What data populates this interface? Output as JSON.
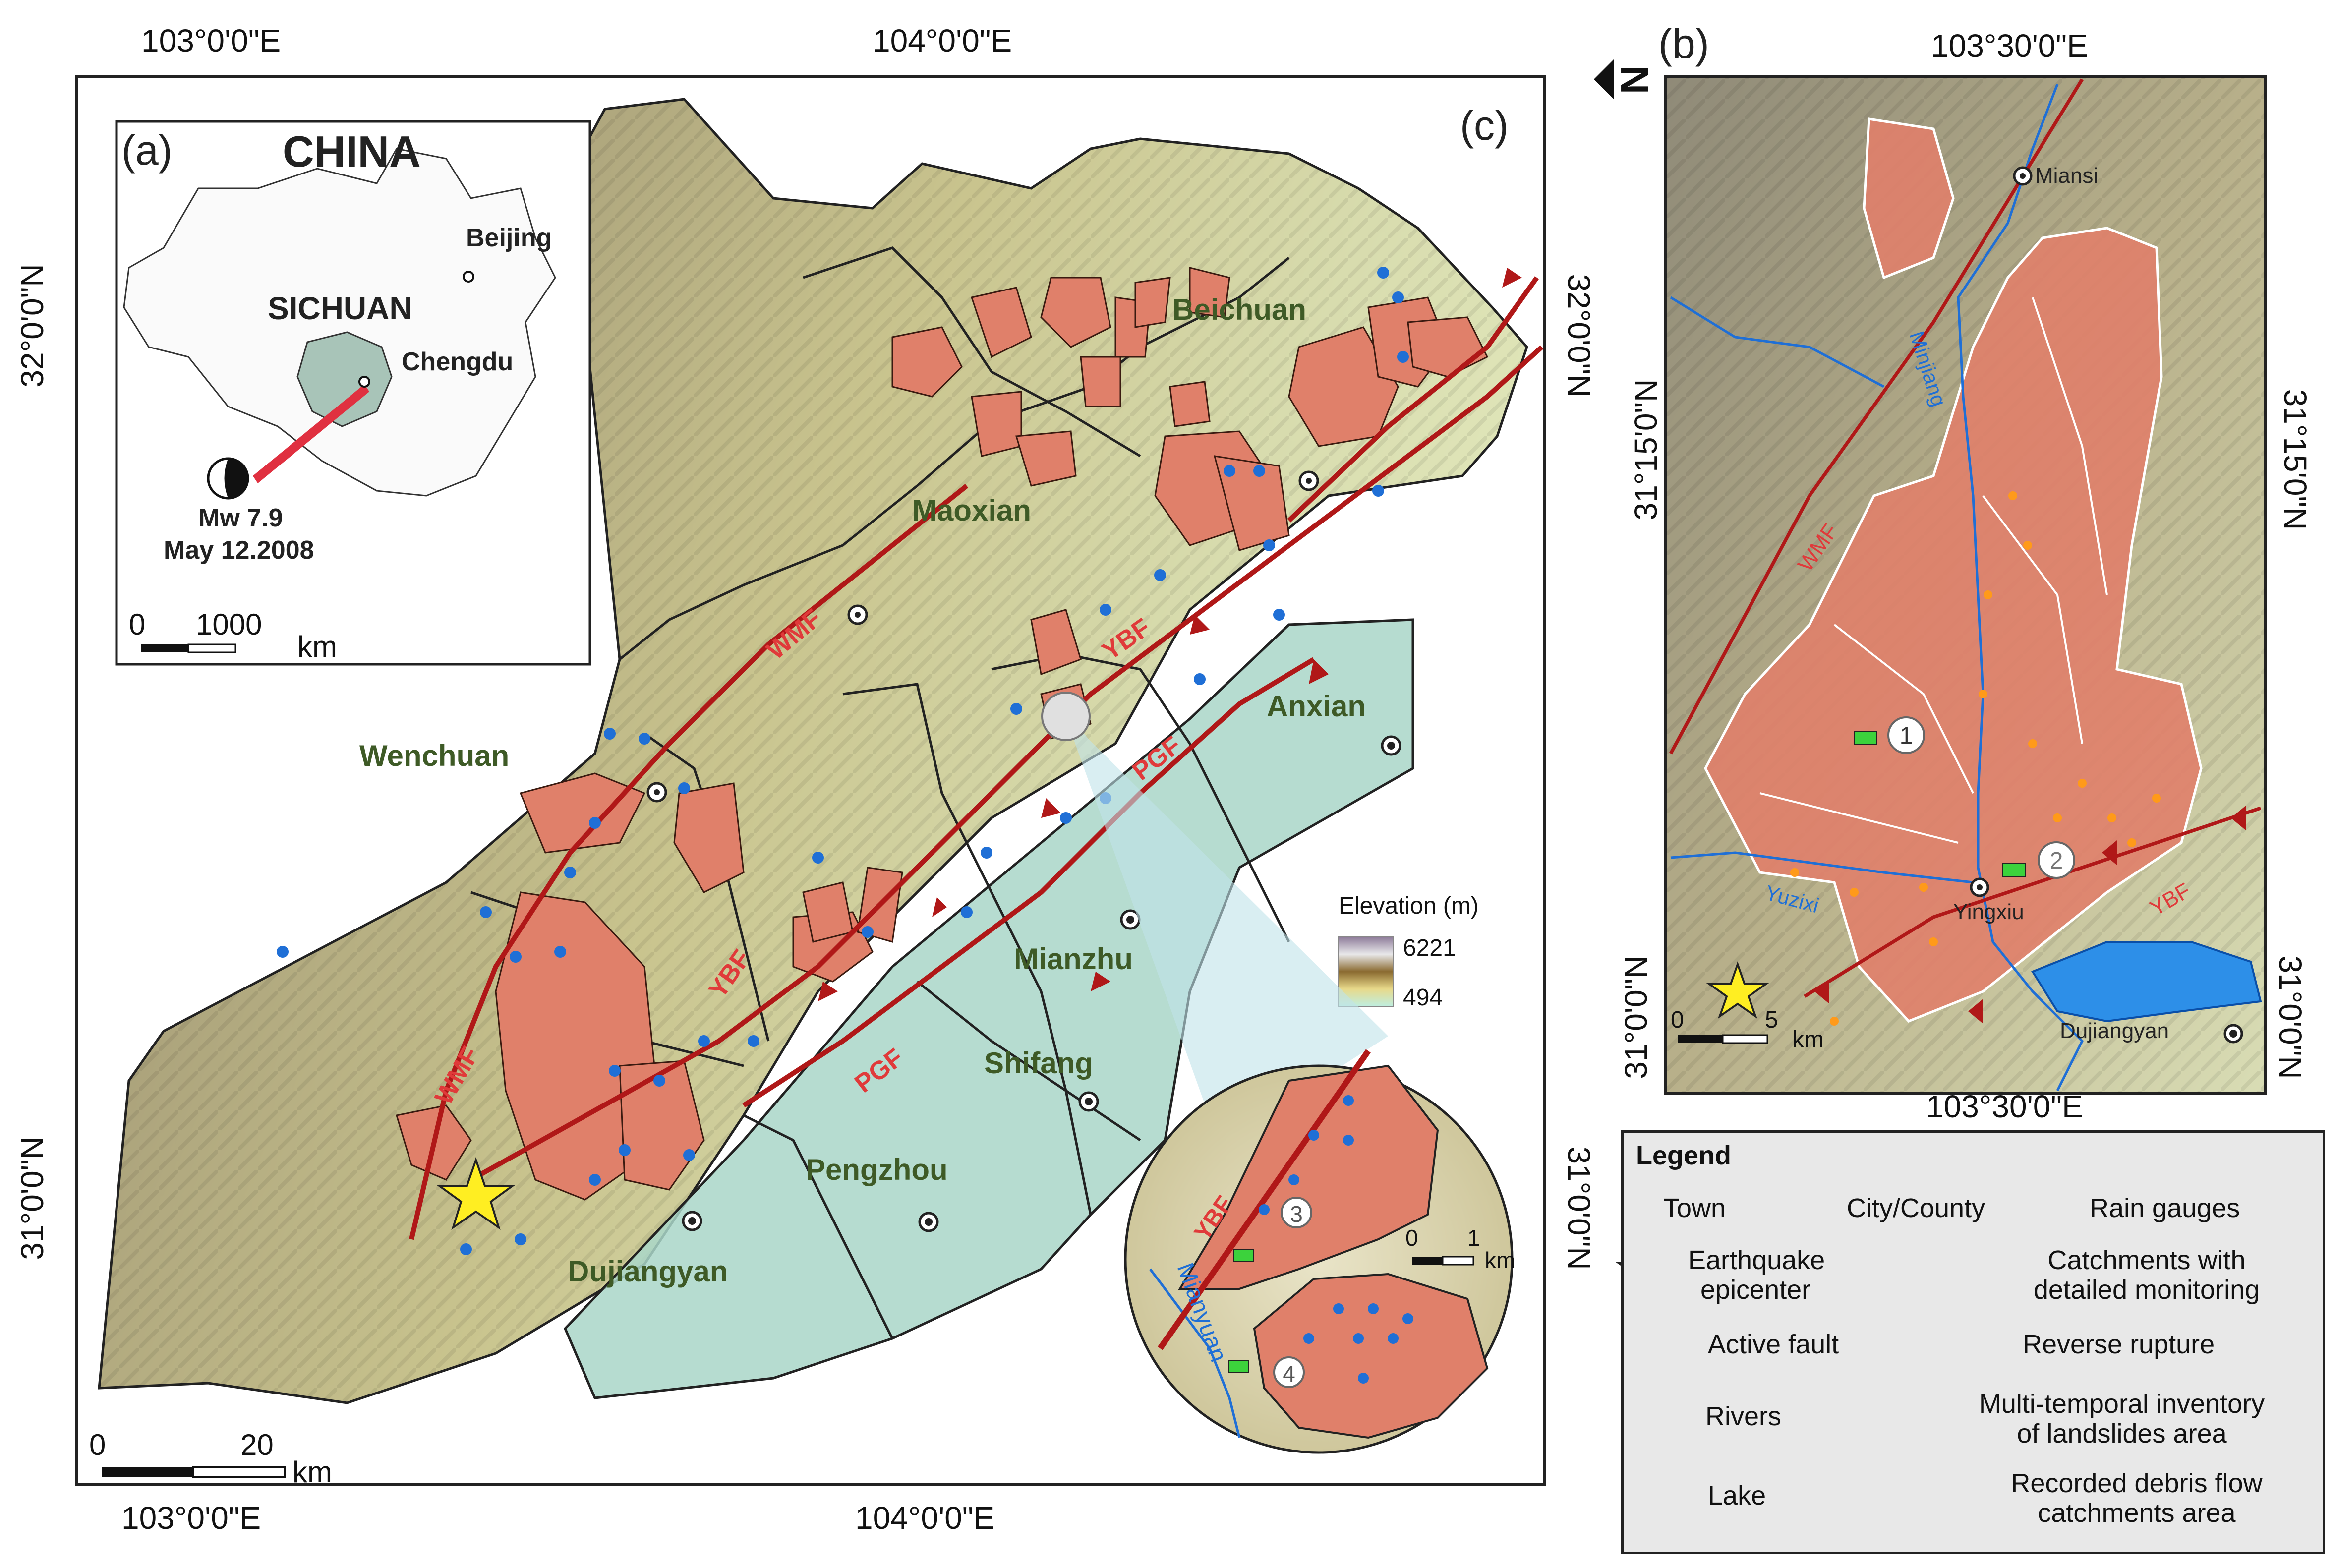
{
  "panels": {
    "a": "(a)",
    "b": "(b)",
    "c": "(c)"
  },
  "map_c": {
    "top_ticks": [
      "103°0'0\"E",
      "104°0'0\"E"
    ],
    "bottom_ticks": [
      "103°0'0\"E",
      "104°0'0\"E"
    ],
    "left_ticks": [
      "32°0'0\"N",
      "31°0'0\"N"
    ],
    "right_ticks": [
      "32°0'0\"N",
      "31°0'0\"N"
    ],
    "counties": [
      "Beichuan",
      "Maoxian",
      "Wenchuan",
      "Anxian",
      "Mianzhu",
      "Shifang",
      "Pengzhou",
      "Dujiangyan"
    ],
    "faults": {
      "wmf_1": "WMF",
      "wmf_2": "WMF",
      "ybf_1": "YBF",
      "ybf_2": "YBF",
      "pgf_1": "PGF",
      "pgf_2": "PGF"
    },
    "scalebar": {
      "zero": "0",
      "end": "20",
      "unit": "km"
    },
    "elevation": {
      "title": "Elevation (m)",
      "max": "6221",
      "min": "494"
    }
  },
  "inset_a": {
    "country": "CHINA",
    "province": "SICHUAN",
    "cities": [
      "Beijing",
      "Chengdu"
    ],
    "magnitude": "Mw 7.9",
    "date": "May 12.2008",
    "scalebar": {
      "zero": "0",
      "end": "1000",
      "unit": "km"
    }
  },
  "map_b": {
    "top_tick": "103°30'0\"E",
    "bottom_tick": "103°30'0\"E",
    "left_ticks": [
      "31°15'0\"N",
      "31°0'0\"N"
    ],
    "right_ticks": [
      "31°15'0\"N",
      "31°0'0\"N"
    ],
    "towns": [
      "Miansi",
      "Yingxiu",
      "Dujiangyan"
    ],
    "rivers": [
      "Minjiang",
      "Yuzixi"
    ],
    "faults": {
      "wmf": "WMF",
      "ybf": "YBF"
    },
    "catchments": [
      "1",
      "2"
    ],
    "scalebar": {
      "zero": "0",
      "end": "5",
      "unit": "km"
    }
  },
  "zoom_circle": {
    "river": "Mianyuan",
    "fault": "YBF",
    "catchments": [
      "3",
      "4"
    ],
    "scalebar": {
      "zero": "0",
      "end": "1",
      "unit": "km"
    }
  },
  "legend": {
    "title": "Legend",
    "town": "Town",
    "city": "City/County",
    "rain": "Rain gauges",
    "epicenter_1": "Earthquake",
    "epicenter_2": "epicenter",
    "monitor_1": "Catchments with",
    "monitor_2": "detailed monitoring",
    "active_fault": "Active fault",
    "reverse": "Reverse rupture",
    "rivers": "Rivers",
    "inventory_1": "Multi-temporal inventory",
    "inventory_2": "of landslides area",
    "lake": "Lake",
    "debris_1": "Recorded debris flow",
    "debris_2": "catchments area"
  },
  "colors": {
    "fault": "#b01818",
    "landslide": "#e0806a",
    "plain": "#a9d6c8",
    "river": "#1f6fd6",
    "epicenter": "#ffee22"
  }
}
